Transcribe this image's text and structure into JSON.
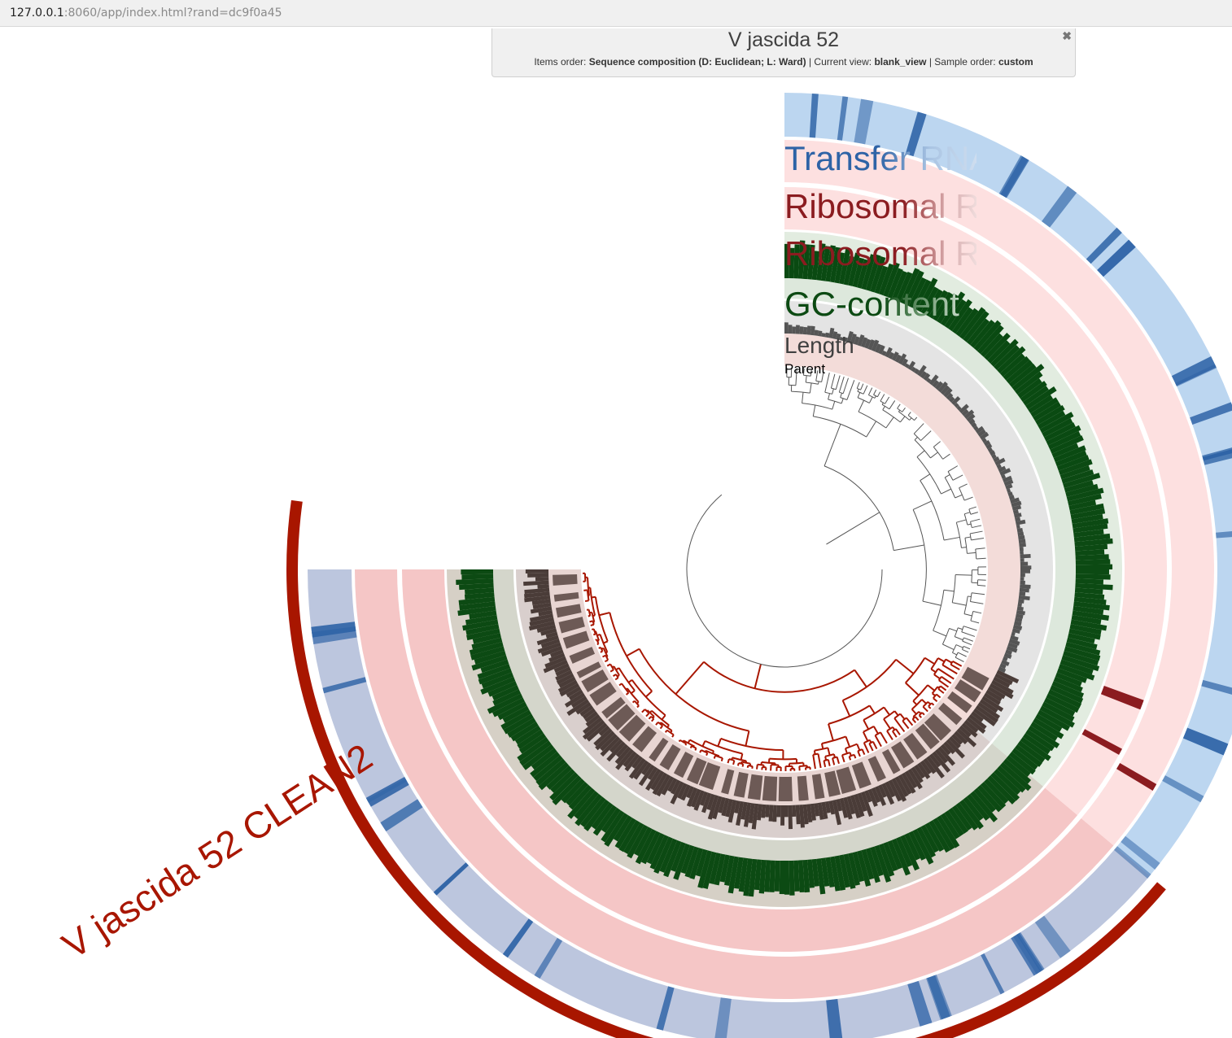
{
  "browser": {
    "url_host": "127.0.0.1",
    "url_rest": ":8060/app/index.html?rand=dc9f0a45"
  },
  "title_panel": {
    "title": "V jascida 52",
    "items_order_label": "Items order:",
    "items_order_value": "Sequence composition (D: Euclidean; L: Ward)",
    "current_view_label": "Current view:",
    "current_view_value": "blank_view",
    "sample_order_label": "Sample order:",
    "sample_order_value": "custom",
    "close_symbol": "✖"
  },
  "layers": [
    {
      "name": "Transfer RNA",
      "color": "#2e63a6"
    },
    {
      "name": "Ribosomal R",
      "color": "#8b1c20"
    },
    {
      "name": "Ribosomal R",
      "color": "#8b1c20"
    },
    {
      "name": "GC-content",
      "color": "#0c4a13"
    },
    {
      "name": "Length",
      "color": "#404040"
    },
    {
      "name": "Parent",
      "color": "#000000"
    }
  ],
  "bin": {
    "name": "V jascida 52 CLEAN2",
    "color": "#a81600"
  },
  "colors": {
    "bin": "#a81600",
    "trna": "#2e63a6",
    "trna_bg": "#bcd6f0",
    "rrna": "#f5c6c6",
    "rrna_mark": "#8b1c20",
    "gc": "#0c4a13",
    "gc_bg": "#d4ddd2",
    "length": "#4a3c38",
    "parent": "#6d5a56",
    "parent_bg": "#f3dcd9",
    "tree_in": "#a81600",
    "tree_out": "#555555"
  }
}
